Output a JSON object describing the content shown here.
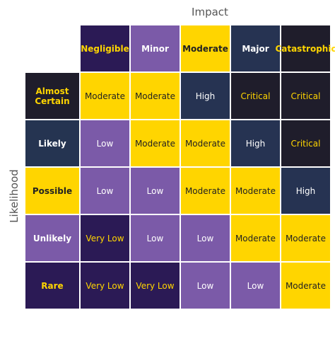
{
  "axes": {
    "x_title": "Impact",
    "y_title": "Likelihood"
  },
  "impact": [
    {
      "label": "Negligible",
      "style": "c-dp"
    },
    {
      "label": "Minor",
      "style": "c-pu"
    },
    {
      "label": "Moderate",
      "style": "c-ye"
    },
    {
      "label": "Major",
      "style": "c-nv"
    },
    {
      "label": "Catastrophic",
      "style": "c-bk"
    }
  ],
  "likelihood": [
    {
      "label": "Almost Certain",
      "style": "c-bk",
      "cells": [
        {
          "text": "Moderate",
          "style": "c-ye"
        },
        {
          "text": "Moderate",
          "style": "c-ye"
        },
        {
          "text": "High",
          "style": "c-nv"
        },
        {
          "text": "Critical",
          "style": "c-bk"
        },
        {
          "text": "Critical",
          "style": "c-bk"
        }
      ]
    },
    {
      "label": "Likely",
      "style": "c-nv2",
      "cells": [
        {
          "text": "Low",
          "style": "c-pu"
        },
        {
          "text": "Moderate",
          "style": "c-ye"
        },
        {
          "text": "Moderate",
          "style": "c-ye"
        },
        {
          "text": "High",
          "style": "c-nv"
        },
        {
          "text": "Critical",
          "style": "c-bk"
        }
      ]
    },
    {
      "label": "Possible",
      "style": "c-ye",
      "cells": [
        {
          "text": "Low",
          "style": "c-pu"
        },
        {
          "text": "Low",
          "style": "c-pu"
        },
        {
          "text": "Moderate",
          "style": "c-ye"
        },
        {
          "text": "Moderate",
          "style": "c-ye"
        },
        {
          "text": "High",
          "style": "c-nv"
        }
      ]
    },
    {
      "label": "Unlikely",
      "style": "c-pu",
      "cells": [
        {
          "text": "Very Low",
          "style": "c-dp"
        },
        {
          "text": "Low",
          "style": "c-pu"
        },
        {
          "text": "Low",
          "style": "c-pu"
        },
        {
          "text": "Moderate",
          "style": "c-ye"
        },
        {
          "text": "Moderate",
          "style": "c-ye"
        }
      ]
    },
    {
      "label": "Rare",
      "style": "c-dp",
      "cells": [
        {
          "text": "Very Low",
          "style": "c-dp"
        },
        {
          "text": "Very Low",
          "style": "c-dp"
        },
        {
          "text": "Low",
          "style": "c-pu"
        },
        {
          "text": "Low",
          "style": "c-pu"
        },
        {
          "text": "Moderate",
          "style": "c-ye"
        }
      ]
    }
  ],
  "colors": {
    "deep_purple": "#2b1a55",
    "purple": "#7b5aa8",
    "yellow": "#ffd500",
    "navy": "#263352",
    "black": "#1f1d2b"
  }
}
